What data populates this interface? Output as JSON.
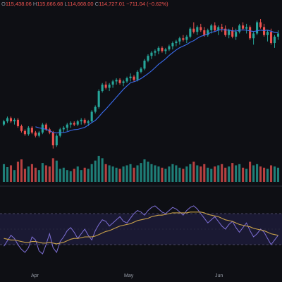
{
  "header": {
    "open_label": "O",
    "open_value": "115,438.06",
    "high_label": "H",
    "high_value": "115,666.68",
    "low_label": "L",
    "low_value": "114,668.00",
    "close_label": "C",
    "close_value": "114,727.01",
    "change_text": "−711.04 (−0.62%)"
  },
  "x_axis_labels": [
    "Apr",
    "May",
    "Jun"
  ],
  "colors": {
    "up": "#26a69a",
    "down": "#ef5350",
    "ma_line": "#3b6df0",
    "osc_line": "#7e6fd6",
    "signal_line": "#c9a24a",
    "background": "#0e0f14",
    "osc_band": "#1a1933"
  },
  "chart_data": {
    "type": "candlestick",
    "candles": [
      [
        100,
        103,
        99,
        102
      ],
      [
        102,
        105,
        101,
        104
      ],
      [
        104,
        105,
        101,
        102
      ],
      [
        102,
        104,
        100,
        103
      ],
      [
        103,
        104,
        98,
        99
      ],
      [
        99,
        100,
        95,
        96
      ],
      [
        96,
        97,
        93,
        94
      ],
      [
        94,
        99,
        93,
        98
      ],
      [
        98,
        99,
        94,
        95
      ],
      [
        95,
        96,
        92,
        93
      ],
      [
        93,
        96,
        92,
        95
      ],
      [
        95,
        101,
        94,
        100
      ],
      [
        100,
        101,
        96,
        97
      ],
      [
        97,
        98,
        94,
        95
      ],
      [
        95,
        96,
        85,
        87
      ],
      [
        87,
        94,
        86,
        93
      ],
      [
        93,
        98,
        92,
        97
      ],
      [
        97,
        99,
        95,
        98
      ],
      [
        98,
        101,
        96,
        100
      ],
      [
        100,
        102,
        98,
        101
      ],
      [
        101,
        102,
        99,
        100
      ],
      [
        100,
        103,
        99,
        102
      ],
      [
        102,
        104,
        100,
        103
      ],
      [
        103,
        104,
        100,
        101
      ],
      [
        101,
        103,
        99,
        102
      ],
      [
        102,
        109,
        101,
        108
      ],
      [
        108,
        112,
        107,
        111
      ],
      [
        111,
        122,
        110,
        121
      ],
      [
        121,
        126,
        120,
        125
      ],
      [
        125,
        127,
        122,
        123
      ],
      [
        123,
        126,
        121,
        125
      ],
      [
        125,
        128,
        123,
        127
      ],
      [
        127,
        129,
        125,
        128
      ],
      [
        128,
        129,
        125,
        126
      ],
      [
        126,
        128,
        124,
        127
      ],
      [
        127,
        130,
        126,
        129
      ],
      [
        129,
        132,
        127,
        130
      ],
      [
        130,
        131,
        127,
        128
      ],
      [
        128,
        134,
        127,
        133
      ],
      [
        133,
        136,
        132,
        135
      ],
      [
        135,
        141,
        134,
        140
      ],
      [
        140,
        144,
        139,
        143
      ],
      [
        143,
        146,
        141,
        145
      ],
      [
        145,
        147,
        143,
        146
      ],
      [
        146,
        149,
        144,
        148
      ],
      [
        148,
        149,
        145,
        146
      ],
      [
        146,
        148,
        144,
        147
      ],
      [
        147,
        150,
        146,
        149
      ],
      [
        149,
        152,
        147,
        151
      ],
      [
        151,
        153,
        149,
        152
      ],
      [
        152,
        155,
        150,
        154
      ],
      [
        154,
        156,
        152,
        153
      ],
      [
        153,
        156,
        151,
        155
      ],
      [
        155,
        161,
        154,
        160
      ],
      [
        160,
        164,
        157,
        158
      ],
      [
        158,
        162,
        156,
        161
      ],
      [
        161,
        163,
        158,
        159
      ],
      [
        159,
        161,
        155,
        156
      ],
      [
        156,
        160,
        155,
        159
      ],
      [
        159,
        163,
        157,
        162
      ],
      [
        162,
        164,
        158,
        159
      ],
      [
        159,
        162,
        156,
        161
      ],
      [
        161,
        163,
        158,
        160
      ],
      [
        160,
        162,
        155,
        156
      ],
      [
        156,
        160,
        154,
        159
      ],
      [
        159,
        161,
        154,
        155
      ],
      [
        155,
        160,
        153,
        158
      ],
      [
        158,
        163,
        157,
        162
      ],
      [
        162,
        164,
        159,
        160
      ],
      [
        160,
        163,
        157,
        161
      ],
      [
        161,
        162,
        153,
        154
      ],
      [
        154,
        158,
        150,
        157
      ],
      [
        157,
        165,
        156,
        164
      ],
      [
        164,
        166,
        160,
        161
      ],
      [
        161,
        163,
        155,
        156
      ],
      [
        156,
        159,
        152,
        158
      ],
      [
        158,
        160,
        150,
        151
      ],
      [
        151,
        156,
        148,
        155
      ],
      [
        155,
        159,
        153,
        157
      ]
    ],
    "volumes": [
      30,
      25,
      28,
      20,
      34,
      38,
      22,
      26,
      30,
      24,
      20,
      32,
      28,
      26,
      40,
      36,
      22,
      24,
      20,
      18,
      22,
      26,
      20,
      24,
      22,
      30,
      36,
      44,
      40,
      30,
      28,
      26,
      24,
      22,
      26,
      28,
      30,
      24,
      28,
      32,
      38,
      34,
      30,
      28,
      26,
      24,
      22,
      26,
      30,
      28,
      24,
      22,
      26,
      30,
      34,
      28,
      26,
      30,
      24,
      22,
      26,
      28,
      30,
      24,
      26,
      32,
      28,
      30,
      24,
      22,
      34,
      28,
      30,
      26,
      24,
      22,
      28,
      26,
      24
    ],
    "oscillator": [
      28,
      35,
      42,
      38,
      30,
      24,
      20,
      26,
      40,
      36,
      22,
      18,
      30,
      44,
      26,
      20,
      34,
      40,
      48,
      52,
      46,
      38,
      44,
      50,
      42,
      36,
      48,
      56,
      62,
      60,
      54,
      58,
      62,
      66,
      60,
      58,
      64,
      70,
      74,
      72,
      68,
      74,
      78,
      80,
      76,
      72,
      70,
      74,
      78,
      76,
      72,
      68,
      74,
      78,
      80,
      76,
      70,
      64,
      58,
      62,
      66,
      60,
      54,
      50,
      56,
      60,
      52,
      46,
      52,
      58,
      48,
      40,
      44,
      50,
      46,
      38,
      30,
      36,
      42
    ],
    "signal": [
      38,
      37,
      36,
      36,
      35,
      34,
      33,
      33,
      34,
      34,
      33,
      32,
      32,
      33,
      32,
      31,
      32,
      33,
      35,
      37,
      38,
      38,
      39,
      40,
      40,
      40,
      41,
      43,
      45,
      47,
      48,
      50,
      52,
      54,
      55,
      56,
      57,
      59,
      61,
      62,
      63,
      64,
      66,
      67,
      68,
      68,
      69,
      70,
      71,
      71,
      71,
      71,
      71,
      72,
      72,
      72,
      72,
      71,
      69,
      68,
      67,
      66,
      64,
      62,
      61,
      60,
      58,
      56,
      55,
      54,
      53,
      51,
      50,
      49,
      48,
      46,
      44,
      43,
      42
    ],
    "ma_period": 10,
    "y_range": [
      80,
      170
    ],
    "volume_range": [
      0,
      50
    ],
    "oscillator_range": [
      0,
      100
    ],
    "oscillator_bands": [
      30,
      70
    ],
    "grid": false
  }
}
